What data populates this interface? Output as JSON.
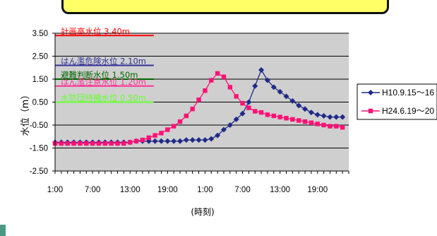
{
  "chart_data": {
    "type": "line",
    "ylabel": "水位（m）",
    "xlabel": "(時刻)",
    "ylim": [
      -2.5,
      3.5
    ],
    "yticks": [
      "3.50",
      "2.50",
      "1.50",
      "0.50",
      "-0.50",
      "-1.50",
      "-2.50"
    ],
    "xtick_labels": [
      "1:00",
      "7:00",
      "13:00",
      "19:00",
      "1:00",
      "7:00",
      "13:00",
      "19:00"
    ],
    "xtick_positions": [
      0,
      6,
      12,
      18,
      24,
      30,
      36,
      42
    ],
    "grid": true,
    "legend_position": "right",
    "levels": [
      {
        "label": "計画高水位 3.40m",
        "value": 3.4,
        "color": "#ff0000"
      },
      {
        "label": "はん濫危険水位 2.10m",
        "value": 2.1,
        "color": "#333399"
      },
      {
        "label": "避難判断水位 1.50m",
        "value": 1.5,
        "color": "#006600"
      },
      {
        "label": "はん濫注意水位 1.20m",
        "value": 1.2,
        "color": "#ff3399"
      },
      {
        "label": "水防団待機水位 0.50m",
        "value": 0.5,
        "color": "#66ff33"
      }
    ],
    "series": [
      {
        "name": "H10.9.15～16",
        "color": "#1f2a88",
        "marker": "diamond",
        "x": [
          0,
          1,
          2,
          3,
          4,
          5,
          6,
          7,
          8,
          9,
          10,
          11,
          12,
          13,
          14,
          15,
          16,
          17,
          18,
          19,
          20,
          21,
          22,
          23,
          24,
          25,
          26,
          27,
          28,
          29,
          30,
          31,
          32,
          33,
          34,
          35,
          36,
          37,
          38,
          39,
          40,
          41,
          42,
          43,
          44,
          45,
          46
        ],
        "values": [
          -1.25,
          -1.25,
          -1.25,
          -1.25,
          -1.25,
          -1.25,
          -1.25,
          -1.25,
          -1.25,
          -1.25,
          -1.25,
          -1.25,
          -1.25,
          -1.2,
          -1.2,
          -1.2,
          -1.2,
          -1.2,
          -1.2,
          -1.2,
          -1.2,
          -1.15,
          -1.15,
          -1.15,
          -1.15,
          -1.1,
          -0.95,
          -0.7,
          -0.5,
          -0.25,
          0.0,
          0.5,
          1.2,
          1.9,
          1.45,
          1.15,
          0.95,
          0.75,
          0.55,
          0.35,
          0.2,
          0.05,
          -0.05,
          -0.1,
          -0.15,
          -0.15,
          -0.15
        ]
      },
      {
        "name": "H24.6.19～20",
        "color": "#ff1177",
        "marker": "square",
        "x": [
          0,
          1,
          2,
          3,
          4,
          5,
          6,
          7,
          8,
          9,
          10,
          11,
          12,
          13,
          14,
          15,
          16,
          17,
          18,
          19,
          20,
          21,
          22,
          23,
          24,
          25,
          26,
          27,
          28,
          29,
          30,
          31,
          32,
          33,
          34,
          35,
          36,
          37,
          38,
          39,
          40,
          41,
          42,
          43,
          44,
          45,
          46
        ],
        "values": [
          -1.3,
          -1.3,
          -1.3,
          -1.3,
          -1.3,
          -1.3,
          -1.3,
          -1.3,
          -1.3,
          -1.3,
          -1.3,
          -1.3,
          -1.25,
          -1.2,
          -1.15,
          -1.05,
          -0.95,
          -0.85,
          -0.7,
          -0.55,
          -0.35,
          -0.1,
          0.2,
          0.6,
          1.0,
          1.45,
          1.75,
          1.6,
          1.15,
          0.75,
          0.45,
          0.25,
          0.1,
          0.05,
          -0.05,
          -0.1,
          -0.15,
          -0.2,
          -0.25,
          -0.3,
          -0.35,
          -0.4,
          -0.45,
          -0.5,
          -0.55,
          -0.55,
          -0.6
        ]
      }
    ]
  }
}
